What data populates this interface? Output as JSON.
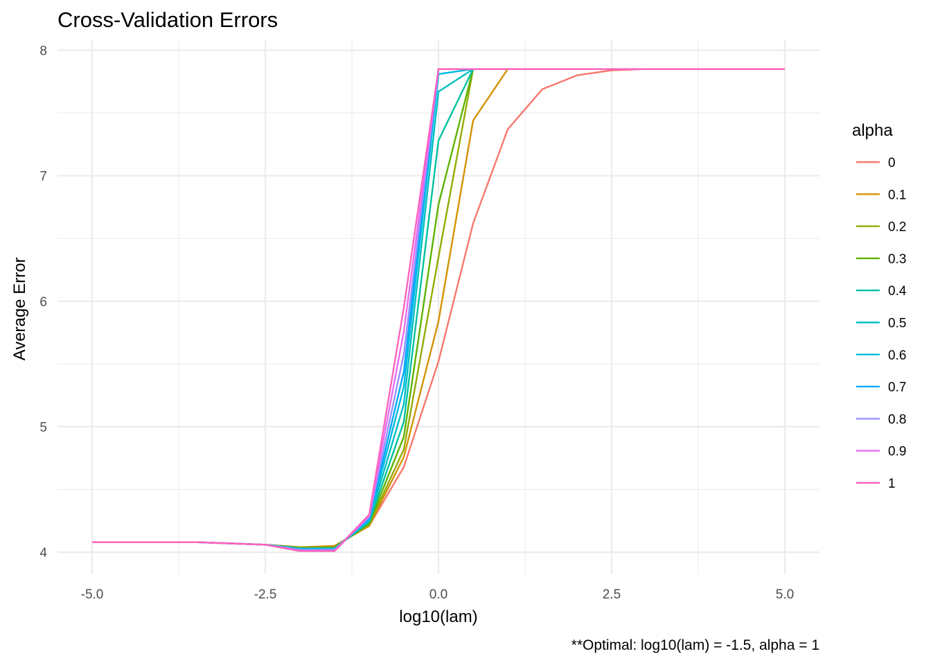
{
  "chart_data": {
    "type": "line",
    "title": "Cross-Validation Errors",
    "xlabel": "log10(lam)",
    "ylabel": "Average Error",
    "caption": "**Optimal: log10(lam) = -1.5, alpha = 1",
    "xlim": [
      -5.5,
      5.5
    ],
    "ylim": [
      3.83,
      8.08
    ],
    "x_ticks": [
      -5.0,
      -2.5,
      0.0,
      2.5,
      5.0
    ],
    "x_tick_labels": [
      "-5.0",
      "-2.5",
      "0.0",
      "2.5",
      "5.0"
    ],
    "y_ticks": [
      4,
      5,
      6,
      7,
      8
    ],
    "y_tick_labels": [
      "4",
      "5",
      "6",
      "7",
      "8"
    ],
    "grid": true,
    "legend": {
      "title": "alpha",
      "position": "right"
    },
    "x": [
      -5,
      -4.5,
      -4,
      -3.5,
      -3,
      -2.5,
      -2,
      -1.5,
      -1,
      -0.5,
      0,
      0.5,
      1,
      1.5,
      2,
      2.5,
      3,
      3.5,
      4,
      4.5,
      5
    ],
    "series": [
      {
        "name": "0",
        "color": "#F8766D",
        "values": [
          4.08,
          4.08,
          4.08,
          4.08,
          4.07,
          4.06,
          4.04,
          4.05,
          4.21,
          4.68,
          5.52,
          6.62,
          7.37,
          7.69,
          7.8,
          7.84,
          7.85,
          7.85,
          7.85,
          7.85,
          7.85
        ]
      },
      {
        "name": "0.1",
        "color": "#D39200",
        "values": [
          4.08,
          4.08,
          4.08,
          4.08,
          4.07,
          4.06,
          4.04,
          4.05,
          4.21,
          4.76,
          5.84,
          7.44,
          7.85,
          7.85,
          7.85,
          7.85,
          7.85,
          7.85,
          7.85,
          7.85,
          7.85
        ]
      },
      {
        "name": "0.2",
        "color": "#93AA00",
        "values": [
          4.08,
          4.08,
          4.08,
          4.08,
          4.07,
          4.06,
          4.04,
          4.04,
          4.22,
          4.82,
          6.35,
          7.85,
          7.85,
          7.85,
          7.85,
          7.85,
          7.85,
          7.85,
          7.85,
          7.85,
          7.85
        ]
      },
      {
        "name": "0.3",
        "color": "#5BB300",
        "values": [
          4.08,
          4.08,
          4.08,
          4.08,
          4.07,
          4.06,
          4.03,
          4.04,
          4.23,
          4.92,
          6.77,
          7.85,
          7.85,
          7.85,
          7.85,
          7.85,
          7.85,
          7.85,
          7.85,
          7.85,
          7.85
        ]
      },
      {
        "name": "0.4",
        "color": "#00C19F",
        "values": [
          4.08,
          4.08,
          4.08,
          4.08,
          4.07,
          4.06,
          4.03,
          4.03,
          4.24,
          5.04,
          7.28,
          7.85,
          7.85,
          7.85,
          7.85,
          7.85,
          7.85,
          7.85,
          7.85,
          7.85,
          7.85
        ]
      },
      {
        "name": "0.5",
        "color": "#00BFC4",
        "values": [
          4.08,
          4.08,
          4.08,
          4.08,
          4.07,
          4.06,
          4.03,
          4.03,
          4.25,
          5.18,
          7.67,
          7.85,
          7.85,
          7.85,
          7.85,
          7.85,
          7.85,
          7.85,
          7.85,
          7.85,
          7.85
        ]
      },
      {
        "name": "0.6",
        "color": "#00B9E3",
        "values": [
          4.08,
          4.08,
          4.08,
          4.08,
          4.07,
          4.06,
          4.03,
          4.03,
          4.26,
          5.32,
          7.81,
          7.85,
          7.85,
          7.85,
          7.85,
          7.85,
          7.85,
          7.85,
          7.85,
          7.85,
          7.85
        ]
      },
      {
        "name": "0.7",
        "color": "#00A9FF",
        "values": [
          4.08,
          4.08,
          4.08,
          4.08,
          4.07,
          4.06,
          4.02,
          4.02,
          4.27,
          5.44,
          7.85,
          7.85,
          7.85,
          7.85,
          7.85,
          7.85,
          7.85,
          7.85,
          7.85,
          7.85,
          7.85
        ]
      },
      {
        "name": "0.8",
        "color": "#9590FF",
        "values": [
          4.08,
          4.08,
          4.08,
          4.08,
          4.07,
          4.06,
          4.02,
          4.02,
          4.28,
          5.58,
          7.85,
          7.85,
          7.85,
          7.85,
          7.85,
          7.85,
          7.85,
          7.85,
          7.85,
          7.85,
          7.85
        ]
      },
      {
        "name": "0.9",
        "color": "#E76BF3",
        "values": [
          4.08,
          4.08,
          4.08,
          4.08,
          4.07,
          4.06,
          4.01,
          4.01,
          4.29,
          5.76,
          7.85,
          7.85,
          7.85,
          7.85,
          7.85,
          7.85,
          7.85,
          7.85,
          7.85,
          7.85,
          7.85
        ]
      },
      {
        "name": "1",
        "color": "#FF62BC",
        "values": [
          4.08,
          4.08,
          4.08,
          4.08,
          4.07,
          4.06,
          4.01,
          4.01,
          4.3,
          5.95,
          7.85,
          7.85,
          7.85,
          7.85,
          7.85,
          7.85,
          7.85,
          7.85,
          7.85,
          7.85,
          7.85
        ]
      }
    ]
  }
}
